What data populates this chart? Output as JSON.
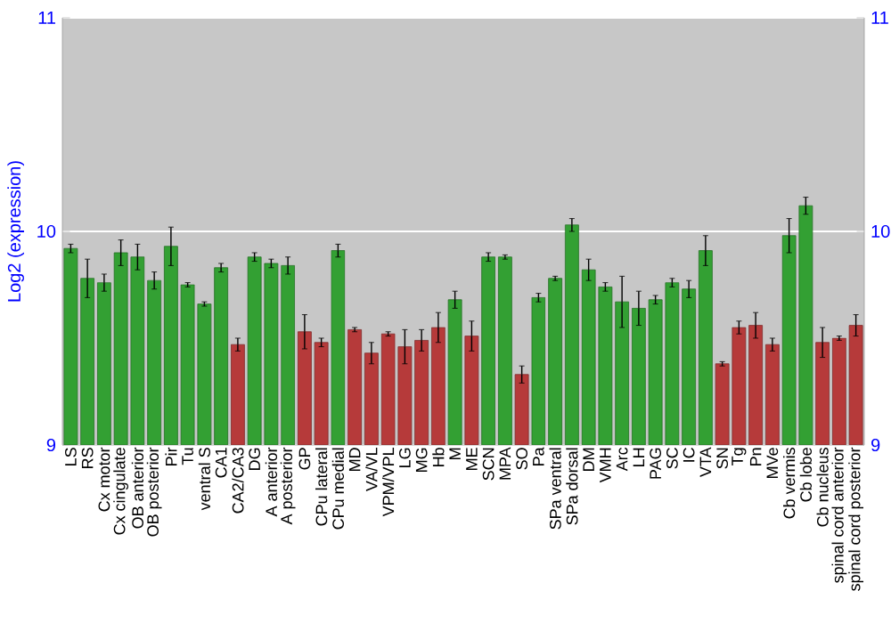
{
  "chart_data": {
    "type": "bar",
    "ylabel": "Log2 (expression)",
    "categories": [
      "LS",
      "RS",
      "Cx motor",
      "Cx cingulate",
      "OB anterior",
      "OB posterior",
      "Pir",
      "Tu",
      "ventral S",
      "CA1",
      "CA2/CA3",
      "DG",
      "A anterior",
      "A posterior",
      "GP",
      "CPu lateral",
      "CPu medial",
      "MD",
      "VA/VL",
      "VPM/VPL",
      "LG",
      "MG",
      "Hb",
      "M",
      "ME",
      "SCN",
      "MPA",
      "SO",
      "Pa",
      "SPa ventral",
      "SPa dorsal",
      "DM",
      "VMH",
      "Arc",
      "LH",
      "PAG",
      "SC",
      "IC",
      "VTA",
      "SN",
      "Tg",
      "Pn",
      "MVe",
      "Cb vermis",
      "Cb lobe",
      "Cb nucleus",
      "spinal cord anterior",
      "spinal cord posterior"
    ],
    "values": [
      9.92,
      9.78,
      9.76,
      9.9,
      9.88,
      9.77,
      9.93,
      9.75,
      9.66,
      9.83,
      9.47,
      9.88,
      9.85,
      9.84,
      9.53,
      9.48,
      9.91,
      9.54,
      9.43,
      9.52,
      9.46,
      9.49,
      9.55,
      9.68,
      9.51,
      9.88,
      9.88,
      9.33,
      9.69,
      9.78,
      10.03,
      9.82,
      9.74,
      9.67,
      9.64,
      9.68,
      9.76,
      9.73,
      9.91,
      9.38,
      9.55,
      9.56,
      9.47,
      9.98,
      10.12,
      9.48,
      9.5,
      9.56
    ],
    "errors": [
      0.02,
      0.09,
      0.04,
      0.06,
      0.06,
      0.04,
      0.09,
      0.01,
      0.01,
      0.02,
      0.03,
      0.02,
      0.02,
      0.04,
      0.08,
      0.02,
      0.03,
      0.01,
      0.05,
      0.01,
      0.08,
      0.05,
      0.07,
      0.04,
      0.07,
      0.02,
      0.01,
      0.04,
      0.02,
      0.01,
      0.03,
      0.05,
      0.02,
      0.12,
      0.08,
      0.02,
      0.02,
      0.04,
      0.07,
      0.01,
      0.03,
      0.06,
      0.03,
      0.08,
      0.04,
      0.07,
      0.01,
      0.05
    ],
    "colors": [
      "#33a033",
      "#33a033",
      "#33a033",
      "#33a033",
      "#33a033",
      "#33a033",
      "#33a033",
      "#33a033",
      "#33a033",
      "#33a033",
      "#b63a3a",
      "#33a033",
      "#33a033",
      "#33a033",
      "#b63a3a",
      "#b63a3a",
      "#33a033",
      "#b63a3a",
      "#b63a3a",
      "#b63a3a",
      "#b63a3a",
      "#b63a3a",
      "#b63a3a",
      "#33a033",
      "#b63a3a",
      "#33a033",
      "#33a033",
      "#b63a3a",
      "#33a033",
      "#33a033",
      "#33a033",
      "#33a033",
      "#33a033",
      "#33a033",
      "#33a033",
      "#33a033",
      "#33a033",
      "#33a033",
      "#33a033",
      "#b63a3a",
      "#b63a3a",
      "#b63a3a",
      "#b63a3a",
      "#33a033",
      "#33a033",
      "#b63a3a",
      "#b63a3a",
      "#b63a3a"
    ],
    "ylim": [
      9,
      11
    ],
    "yticks": [
      9,
      10,
      11
    ],
    "y2lim": [
      9,
      11
    ],
    "y2ticks": [
      9,
      10,
      11
    ],
    "grid": "y"
  }
}
